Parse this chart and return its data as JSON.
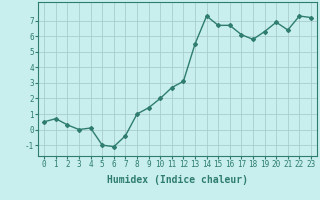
{
  "x": [
    0,
    1,
    2,
    3,
    4,
    5,
    6,
    7,
    8,
    9,
    10,
    11,
    12,
    13,
    14,
    15,
    16,
    17,
    18,
    19,
    20,
    21,
    22,
    23
  ],
  "y": [
    0.5,
    0.7,
    0.3,
    0.0,
    0.1,
    -1.0,
    -1.1,
    -0.4,
    1.0,
    1.4,
    2.0,
    2.7,
    3.1,
    5.5,
    7.3,
    6.7,
    6.7,
    6.1,
    5.8,
    6.3,
    6.9,
    6.4,
    7.3,
    7.2
  ],
  "xlabel": "Humidex (Indice chaleur)",
  "xlim": [
    -0.5,
    23.5
  ],
  "ylim": [
    -1.7,
    8.2
  ],
  "yticks": [
    -1,
    0,
    1,
    2,
    3,
    4,
    5,
    6,
    7
  ],
  "xticks": [
    0,
    1,
    2,
    3,
    4,
    5,
    6,
    7,
    8,
    9,
    10,
    11,
    12,
    13,
    14,
    15,
    16,
    17,
    18,
    19,
    20,
    21,
    22,
    23
  ],
  "line_color": "#2e7d6e",
  "marker": "D",
  "marker_size": 2.0,
  "bg_color": "#c8eeee",
  "grid_color": "#aacccc",
  "tick_label_fontsize": 5.5,
  "xlabel_fontsize": 7.0,
  "line_width": 1.0
}
